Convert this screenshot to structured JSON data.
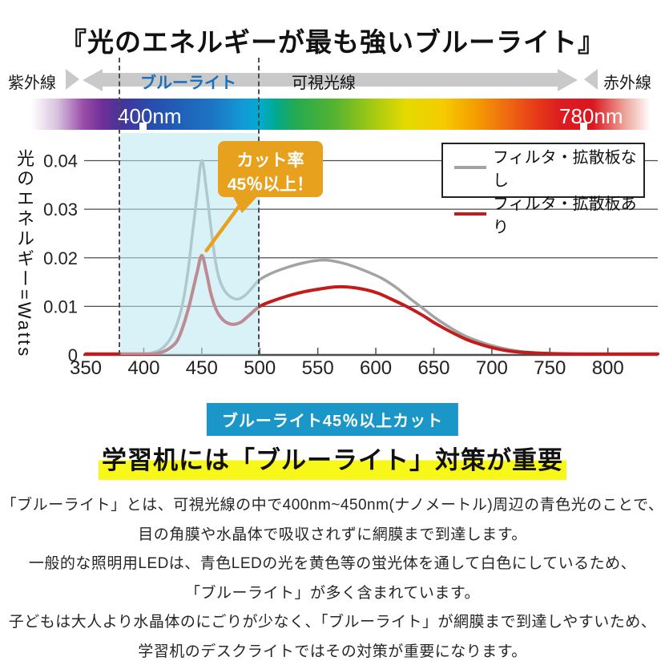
{
  "title": "『光のエネルギーが最も強いブルーライト』",
  "spectrum_row": {
    "uv_label": "紫外線",
    "blue_label": "ブルーライト",
    "visible_label": "可視光線",
    "ir_label": "赤外線"
  },
  "spectrum_bar": {
    "left_label": "400nm",
    "right_label": "780nm"
  },
  "chart_data": {
    "type": "line",
    "ylabel": "光のエネルギー=Watts",
    "xlim": [
      350,
      843
    ],
    "ylim": [
      0,
      0.044
    ],
    "grid": true,
    "legend_position": "top-right",
    "x_ticks": [
      350,
      400,
      450,
      500,
      550,
      600,
      650,
      700,
      750,
      800
    ],
    "y_ticks": [
      {
        "label": "0",
        "value": 0
      },
      {
        "label": "0.01",
        "value": 0.01
      },
      {
        "label": "0.02",
        "value": 0.02
      },
      {
        "label": "0.03",
        "value": 0.03
      },
      {
        "label": "0.04",
        "value": 0.04
      }
    ],
    "highlight_band_nm": [
      380,
      500
    ],
    "highlight_band_color": "rgba(184,231,243,0.55)",
    "series": [
      {
        "name": "フィルタ・拡散板なし",
        "color": "#a3a3a3",
        "width": 3.5,
        "points": [
          [
            350,
            0.0002
          ],
          [
            380,
            0.0002
          ],
          [
            395,
            0.0002
          ],
          [
            400,
            0.0002
          ],
          [
            408,
            0.0005
          ],
          [
            415,
            0.0012
          ],
          [
            422,
            0.003
          ],
          [
            428,
            0.006
          ],
          [
            433,
            0.01
          ],
          [
            438,
            0.017
          ],
          [
            442,
            0.025
          ],
          [
            446,
            0.033
          ],
          [
            450,
            0.04
          ],
          [
            454,
            0.034
          ],
          [
            458,
            0.026
          ],
          [
            462,
            0.019
          ],
          [
            466,
            0.015
          ],
          [
            471,
            0.0128
          ],
          [
            476,
            0.0118
          ],
          [
            481,
            0.0115
          ],
          [
            487,
            0.0122
          ],
          [
            493,
            0.0137
          ],
          [
            500,
            0.0155
          ],
          [
            510,
            0.0168
          ],
          [
            522,
            0.0179
          ],
          [
            535,
            0.0188
          ],
          [
            548,
            0.0194
          ],
          [
            558,
            0.0195
          ],
          [
            570,
            0.019
          ],
          [
            580,
            0.0183
          ],
          [
            592,
            0.0172
          ],
          [
            605,
            0.0158
          ],
          [
            618,
            0.0138
          ],
          [
            630,
            0.0115
          ],
          [
            640,
            0.0097
          ],
          [
            652,
            0.0075
          ],
          [
            665,
            0.0055
          ],
          [
            678,
            0.0038
          ],
          [
            690,
            0.0027
          ],
          [
            702,
            0.0018
          ],
          [
            715,
            0.0011
          ],
          [
            730,
            0.0006
          ],
          [
            750,
            0.0003
          ],
          [
            780,
            0.0002
          ],
          [
            843,
            0.0002
          ]
        ]
      },
      {
        "name": "フィルタ・拡散板あり",
        "color": "#c41c1c",
        "width": 4,
        "points": [
          [
            350,
            0.0002
          ],
          [
            380,
            0.0002
          ],
          [
            400,
            0.0002
          ],
          [
            408,
            0.0002
          ],
          [
            416,
            0.0006
          ],
          [
            423,
            0.0015
          ],
          [
            429,
            0.003
          ],
          [
            434,
            0.006
          ],
          [
            439,
            0.01
          ],
          [
            443,
            0.014
          ],
          [
            446,
            0.017
          ],
          [
            450,
            0.0205
          ],
          [
            454,
            0.017
          ],
          [
            458,
            0.0125
          ],
          [
            463,
            0.009
          ],
          [
            468,
            0.0073
          ],
          [
            473,
            0.0065
          ],
          [
            478,
            0.0063
          ],
          [
            484,
            0.0068
          ],
          [
            491,
            0.0082
          ],
          [
            500,
            0.01
          ],
          [
            512,
            0.0112
          ],
          [
            525,
            0.0122
          ],
          [
            538,
            0.013
          ],
          [
            552,
            0.0136
          ],
          [
            565,
            0.014
          ],
          [
            575,
            0.014
          ],
          [
            590,
            0.0135
          ],
          [
            602,
            0.0127
          ],
          [
            615,
            0.0113
          ],
          [
            628,
            0.0098
          ],
          [
            640,
            0.0082
          ],
          [
            652,
            0.0064
          ],
          [
            665,
            0.0047
          ],
          [
            678,
            0.0032
          ],
          [
            690,
            0.0022
          ],
          [
            702,
            0.0014
          ],
          [
            715,
            0.0008
          ],
          [
            730,
            0.0005
          ],
          [
            750,
            0.0003
          ],
          [
            780,
            0.0002
          ],
          [
            843,
            0.0002
          ]
        ]
      }
    ],
    "annotation": {
      "target_nm": 454,
      "target_watts": 0.0215,
      "label": "カット率 45%以上！"
    }
  },
  "legend": {
    "items": [
      {
        "label": "フィルタ・拡散板なし",
        "color": "#a3a3a3"
      },
      {
        "label": "フィルタ・拡散板あり",
        "color": "#c41c1c"
      }
    ]
  },
  "callout": {
    "line1": "カット率",
    "line2": "45％以上！",
    "color": "#e8a11d"
  },
  "badge": {
    "text": "ブルーライト45％以上カット",
    "color": "#1a96c8"
  },
  "heading": {
    "text": "学習机には「ブルーライト」対策が重要",
    "highlight_color": "#f7f719"
  },
  "body_lines": [
    "「ブルーライト」とは、可視光線の中で400nm~450nm(ナノメートル)周辺の青色光のことで、",
    "目の角膜や水晶体で吸収されずに網膜まで到達します。",
    "一般的な照明用LEDは、青色LEDの光を黄色等の蛍光体を通して白色にしているため、",
    "「ブルーライト」が多く含まれています。",
    "子どもは大人より水晶体のにごりが少なく、「ブルーライト」が網膜まで到達しやすいため、",
    "学習机のデスクライトではその対策が重要になります。"
  ],
  "colors": {
    "blue_label": "#1a6fba",
    "axis": "#4d4d4d",
    "connector_orange": "#e8a11d"
  }
}
